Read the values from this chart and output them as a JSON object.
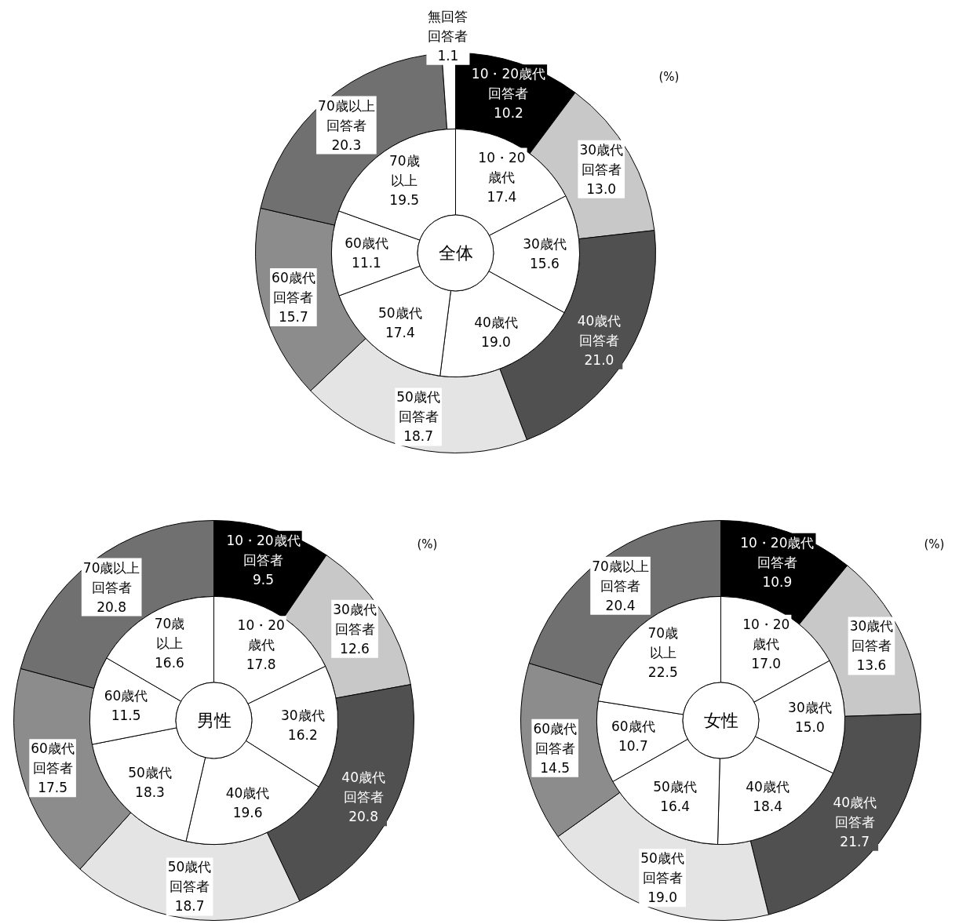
{
  "chart_data": [
    {
      "type": "donut",
      "title": "全体",
      "annotations": [
        "(%)"
      ],
      "categories": [
        "10・20歳代",
        "30歳代",
        "40歳代",
        "50歳代",
        "60歳代",
        "70歳以上",
        "無回答"
      ],
      "series": [
        {
          "name": "回答者",
          "colors": [
            "#000000",
            "#c8c8c8",
            "#505050",
            "#e4e4e4",
            "#8c8c8c",
            "#707070",
            "#ffffff"
          ],
          "values": [
            10.2,
            13.0,
            21.0,
            18.7,
            15.7,
            20.3,
            1.1
          ],
          "value_labels": [
            "10.2",
            "13.0",
            "21.0",
            "18.7",
            "15.7",
            "20.3",
            "1.1"
          ]
        },
        {
          "colors": [
            "#ffffff",
            "#ffffff",
            "#ffffff",
            "#ffffff",
            "#ffffff",
            "#ffffff",
            "#ffffff"
          ],
          "values": [
            17.4,
            15.6,
            19.0,
            17.4,
            11.1,
            19.5,
            null
          ],
          "value_labels": [
            "17.4",
            "15.6",
            "19.0",
            "17.4",
            "11.1",
            "19.5",
            null
          ]
        }
      ]
    },
    {
      "type": "donut",
      "title": "男性",
      "annotations": [
        "(%)"
      ],
      "categories": [
        "10・20歳代",
        "30歳代",
        "40歳代",
        "50歳代",
        "60歳代",
        "70歳以上"
      ],
      "series": [
        {
          "name": "回答者",
          "colors": [
            "#000000",
            "#c8c8c8",
            "#505050",
            "#e4e4e4",
            "#8c8c8c",
            "#707070"
          ],
          "values": [
            9.5,
            12.6,
            20.8,
            18.7,
            17.5,
            20.8
          ],
          "value_labels": [
            "9.5",
            "12.6",
            "20.8",
            "18.7",
            "17.5",
            "20.8"
          ]
        },
        {
          "colors": [
            "#ffffff",
            "#ffffff",
            "#ffffff",
            "#ffffff",
            "#ffffff",
            "#ffffff"
          ],
          "values": [
            17.8,
            16.2,
            19.6,
            18.3,
            11.5,
            16.6
          ],
          "value_labels": [
            "17.8",
            "16.2",
            "19.6",
            "18.3",
            "11.5",
            "16.6"
          ]
        }
      ]
    },
    {
      "type": "donut",
      "title": "女性",
      "annotations": [
        "(%)"
      ],
      "categories": [
        "10・20歳代",
        "30歳代",
        "40歳代",
        "50歳代",
        "60歳代",
        "70歳以上"
      ],
      "series": [
        {
          "name": "回答者",
          "colors": [
            "#000000",
            "#c8c8c8",
            "#505050",
            "#e4e4e4",
            "#8c8c8c",
            "#707070"
          ],
          "values": [
            10.9,
            13.6,
            21.7,
            19.0,
            14.5,
            20.4
          ],
          "value_labels": [
            "10.9",
            "13.6",
            "21.7",
            "19.0",
            "14.5",
            "20.4"
          ]
        },
        {
          "colors": [
            "#ffffff",
            "#ffffff",
            "#ffffff",
            "#ffffff",
            "#ffffff",
            "#ffffff"
          ],
          "values": [
            17.0,
            15.0,
            18.4,
            16.4,
            10.7,
            22.5
          ],
          "value_labels": [
            "17.0",
            "15.0",
            "18.4",
            "16.4",
            "10.7",
            "22.5"
          ]
        }
      ]
    }
  ]
}
